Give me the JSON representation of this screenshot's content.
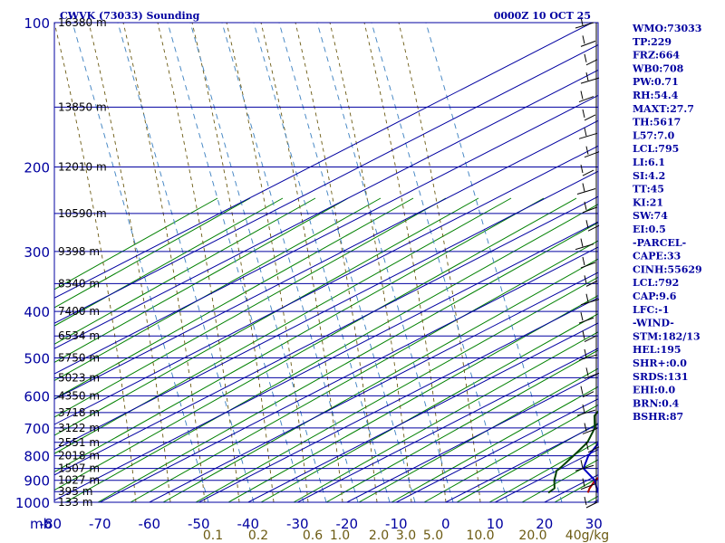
{
  "chart_data": {
    "type": "line",
    "chart_kind": "skew-T log-P sounding",
    "title": "CWVK (73033) Sounding",
    "time_label": "0000Z 10 OCT 25",
    "pressure_ticks": [
      100,
      200,
      300,
      400,
      500,
      600,
      700,
      800,
      900,
      1000
    ],
    "pressure_unit": "mb",
    "temp_ticks": [
      -80,
      -70,
      -60,
      -50,
      -40,
      -30,
      -20,
      -10,
      0,
      10,
      20,
      30
    ],
    "mixing_ratio_labels": [
      "0.1",
      "0.2",
      "0.6",
      "1.0",
      "2.0",
      "3.0",
      "5.0",
      "10.0",
      "20.0",
      "40g/kg"
    ],
    "height_labels": [
      {
        "p": 100,
        "text": "16380 m"
      },
      {
        "p": 150,
        "text": "13850 m"
      },
      {
        "p": 200,
        "text": "12010 m"
      },
      {
        "p": 250,
        "text": "10590 m"
      },
      {
        "p": 300,
        "text": "9398 m"
      },
      {
        "p": 350,
        "text": "8340 m"
      },
      {
        "p": 400,
        "text": "7400 m"
      },
      {
        "p": 450,
        "text": "6534 m"
      },
      {
        "p": 500,
        "text": "5750 m"
      },
      {
        "p": 550,
        "text": "5023 m"
      },
      {
        "p": 600,
        "text": "4350 m"
      },
      {
        "p": 650,
        "text": "3718 m"
      },
      {
        "p": 700,
        "text": "3122 m"
      },
      {
        "p": 750,
        "text": "2551 m"
      },
      {
        "p": 800,
        "text": "2018 m"
      },
      {
        "p": 850,
        "text": "1507 m"
      },
      {
        "p": 900,
        "text": "1027 m"
      },
      {
        "p": 950,
        "text": "395 m"
      },
      {
        "p": 1000,
        "text": "133 m"
      }
    ],
    "series": [
      {
        "name": "Temperature",
        "color": "#b00000",
        "points": [
          [
            955,
            25.0
          ],
          [
            935,
            23.6
          ],
          [
            900,
            21.6
          ],
          [
            880,
            20.9
          ],
          [
            860,
            24.6
          ],
          [
            850,
            26.0
          ],
          [
            820,
            24.0
          ],
          [
            800,
            21.7
          ],
          [
            700,
            13.2
          ],
          [
            600,
            4.0
          ],
          [
            550,
            -1.0
          ],
          [
            500,
            -7.5
          ],
          [
            450,
            -14.8
          ],
          [
            400,
            -23.0
          ],
          [
            350,
            -32.6
          ],
          [
            300,
            -44.0
          ],
          [
            270,
            -51.5
          ],
          [
            250,
            -55.8
          ],
          [
            240,
            -54.0
          ],
          [
            225,
            -59.0
          ],
          [
            210,
            -59.5
          ],
          [
            200,
            -62.0
          ],
          [
            180,
            -62.5
          ],
          [
            160,
            -65.0
          ],
          [
            150,
            -65.5
          ],
          [
            140,
            -69.0
          ],
          [
            125,
            -66.0
          ],
          [
            115,
            -69.5
          ],
          [
            100,
            -77.5
          ]
        ]
      },
      {
        "name": "Dewpoint",
        "color": "#004000",
        "points": [
          [
            955,
            17.0
          ],
          [
            935,
            16.5
          ],
          [
            900,
            13.3
          ],
          [
            875,
            11.3
          ],
          [
            860,
            10.0
          ],
          [
            845,
            9.5
          ],
          [
            800,
            7.5
          ],
          [
            750,
            5.0
          ],
          [
            700,
            0.8
          ],
          [
            660,
            -4.1
          ],
          [
            640,
            -5.5
          ],
          [
            600,
            -8.2
          ],
          [
            560,
            -12.3
          ],
          [
            520,
            -17.5
          ],
          [
            505,
            -21.1
          ],
          [
            500,
            -25.6
          ],
          [
            490,
            -26.4
          ],
          [
            450,
            -31.0
          ],
          [
            420,
            -34.1
          ],
          [
            400,
            -41.0
          ],
          [
            385,
            -41.5
          ],
          [
            365,
            -46.3
          ],
          [
            340,
            -52.3
          ],
          [
            320,
            -56.3
          ],
          [
            300,
            -58.6
          ],
          [
            280,
            -62.3
          ],
          [
            260,
            -68.7
          ],
          [
            255,
            -72.3
          ],
          [
            240,
            -72.1
          ],
          [
            225,
            -78.1
          ],
          [
            210,
            -87.6
          ],
          [
            200,
            -93.0
          ],
          [
            180,
            -101.2
          ],
          [
            160,
            -107.6
          ],
          [
            150,
            -111.1
          ]
        ]
      },
      {
        "name": "Parcel",
        "color": "#0000c0",
        "points": [
          [
            955,
            27.0
          ],
          [
            900,
            21.5
          ],
          [
            850,
            14.5
          ],
          [
            800,
            10.5
          ],
          [
            700,
            4.0
          ],
          [
            600,
            -4.0
          ],
          [
            550,
            -9.0
          ],
          [
            500,
            -14.5
          ],
          [
            450,
            -22.0
          ],
          [
            400,
            -29.5
          ],
          [
            350,
            -38.5
          ],
          [
            300,
            -48.0
          ],
          [
            250,
            -60.0
          ],
          [
            200,
            -73.5
          ],
          [
            190,
            -78.5
          ]
        ]
      }
    ],
    "indices": [
      "WMO:73033",
      "TP:229",
      "FRZ:664",
      "WB0:708",
      "PW:0.71",
      "RH:54.4",
      "MAXT:27.7",
      "TH:5617",
      "L57:7.0",
      "LCL:795",
      "LI:6.1",
      "SI:4.2",
      "TT:45",
      "KI:21",
      "SW:74",
      "EI:0.5",
      "-PARCEL-",
      "CAPE:33",
      "CINH:55629",
      "LCL:792",
      "CAP:9.6",
      "LFC:-1",
      "-WIND-",
      "STM:182/13",
      "HEL:195",
      "SHR+:0.0",
      "SRDS:131",
      "EHI:0.0",
      "BRN:0.4",
      "BSHR:87"
    ],
    "colors": {
      "grid": "#0000a0",
      "dry_adiabat": "#008000",
      "moist_adiabat": "#6b5a12",
      "mixing_ratio": "#3a7fc0",
      "text": "#0000a0"
    }
  }
}
